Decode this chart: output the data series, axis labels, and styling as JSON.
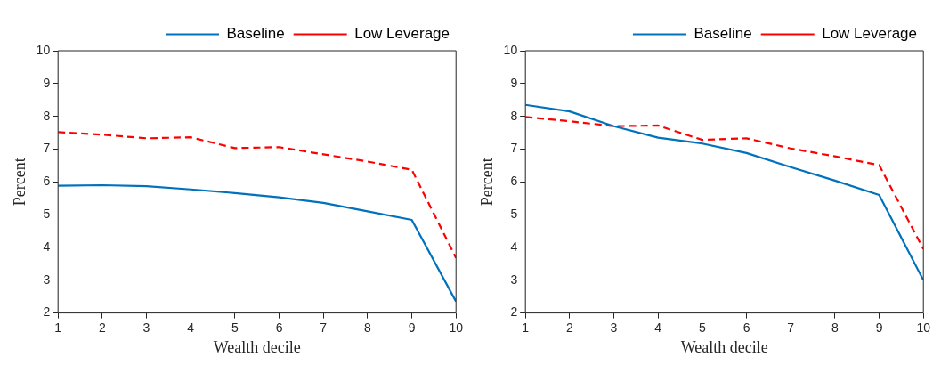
{
  "chart_data": [
    {
      "type": "line",
      "xlabel": "Wealth decile",
      "ylabel": "Percent",
      "x": [
        1,
        2,
        3,
        4,
        5,
        6,
        7,
        8,
        9,
        10
      ],
      "xlim": [
        1,
        10
      ],
      "xticks": [
        1,
        2,
        3,
        4,
        5,
        6,
        7,
        8,
        9,
        10
      ],
      "ylim": [
        2,
        10
      ],
      "yticks": [
        2,
        3,
        4,
        5,
        6,
        7,
        8,
        9,
        10
      ],
      "grid": false,
      "legend": "top right",
      "marker": "none",
      "series": [
        {
          "name": "Baseline",
          "color": "#0072bd",
          "line_style": "solid",
          "values": [
            5.88,
            5.9,
            5.87,
            5.77,
            5.66,
            5.53,
            5.36,
            5.1,
            4.84,
            2.35
          ]
        },
        {
          "name": "Low Leverage",
          "color": "#ff0000",
          "line_style": "dashed",
          "values": [
            7.52,
            7.44,
            7.33,
            7.36,
            7.03,
            7.06,
            6.84,
            6.62,
            6.37,
            3.68
          ]
        }
      ]
    },
    {
      "type": "line",
      "xlabel": "Wealth decile",
      "ylabel": "Percent",
      "x": [
        1,
        2,
        3,
        4,
        5,
        6,
        7,
        8,
        9,
        10
      ],
      "xlim": [
        1,
        10
      ],
      "xticks": [
        1,
        2,
        3,
        4,
        5,
        6,
        7,
        8,
        9,
        10
      ],
      "ylim": [
        2,
        10
      ],
      "yticks": [
        2,
        3,
        4,
        5,
        6,
        7,
        8,
        9,
        10
      ],
      "grid": false,
      "legend": "top right",
      "marker": "none",
      "series": [
        {
          "name": "Baseline",
          "color": "#0072bd",
          "line_style": "solid",
          "values": [
            8.35,
            8.15,
            7.7,
            7.35,
            7.17,
            6.88,
            6.45,
            6.04,
            5.6,
            3.0
          ]
        },
        {
          "name": "Low Leverage",
          "color": "#ff0000",
          "line_style": "dashed",
          "values": [
            7.98,
            7.85,
            7.7,
            7.72,
            7.28,
            7.33,
            7.02,
            6.78,
            6.51,
            3.95
          ]
        }
      ]
    }
  ]
}
